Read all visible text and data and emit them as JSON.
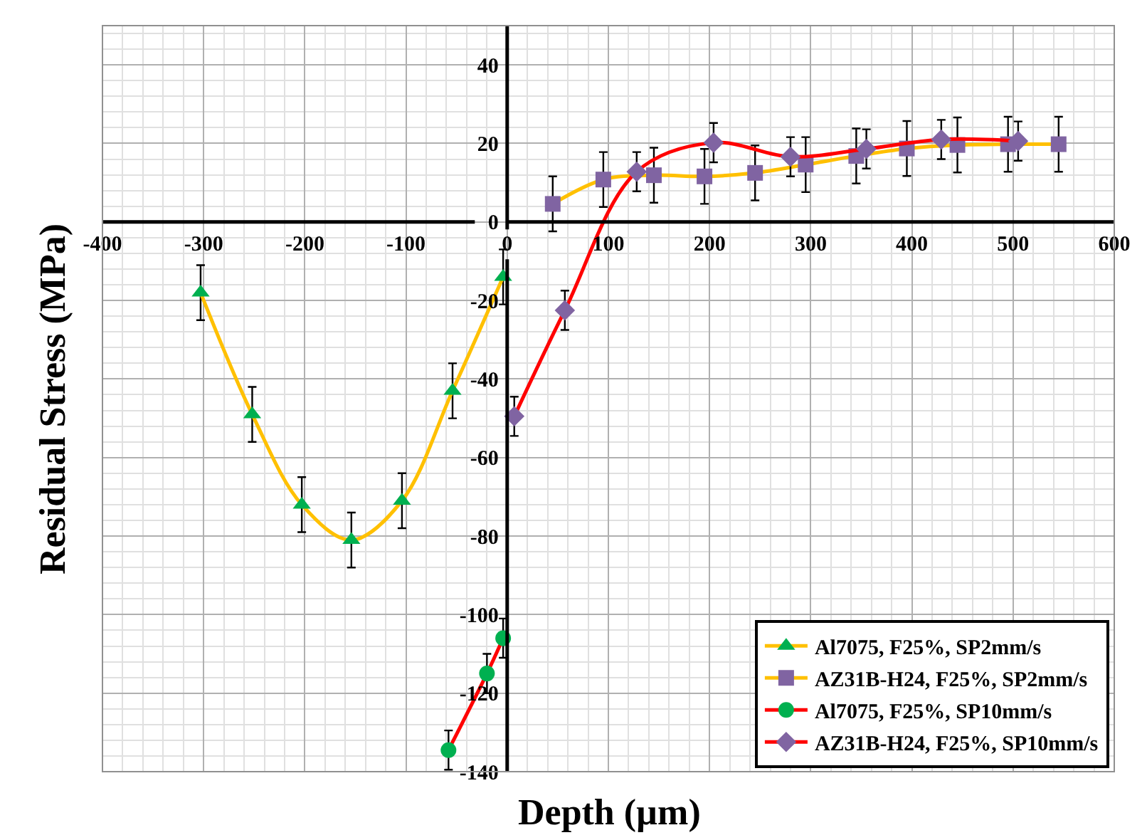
{
  "chart_data": {
    "type": "line",
    "xlabel": "Depth (µm)",
    "ylabel": "Residual Stress (MPa)",
    "xlim": [
      -400,
      600
    ],
    "xticks": [
      -400,
      -300,
      -200,
      -100,
      0,
      100,
      200,
      300,
      400,
      500,
      600
    ],
    "ylim": [
      -140,
      50
    ],
    "yticks": [
      -140,
      -120,
      -100,
      -80,
      -60,
      -40,
      -20,
      0,
      20,
      40
    ],
    "grid": true,
    "legend": "bottom right",
    "line_style": "solid",
    "series": [
      {
        "name": "Al7075, F25%, SP2mm/s",
        "color": "#ffc000",
        "marker": "triangle",
        "colors": [
          "#00b050",
          "#00b050",
          "#00b050",
          "#00b050",
          "#00b050",
          "#00b050",
          "#00b050"
        ],
        "x": [
          -303,
          -252,
          -203,
          -154,
          -104,
          -54,
          -4
        ],
        "values": [
          -18,
          -49,
          -72,
          -81,
          -71,
          -43,
          -14
        ],
        "errors": [
          7,
          7,
          7,
          7,
          7,
          7,
          7
        ]
      },
      {
        "name": "AZ31B-H24, F25%, SP2mm/s",
        "color": "#ffc000",
        "marker": "square",
        "colors": [
          "#8064a2",
          "#8064a2",
          "#8064a2",
          "#8064a2",
          "#8064a2",
          "#8064a2",
          "#8064a2",
          "#8064a2",
          "#8064a2",
          "#8064a2",
          "#8064a2"
        ],
        "x": [
          45,
          95,
          145,
          195,
          245,
          295,
          345,
          395,
          445,
          495,
          545
        ],
        "values": [
          4.6,
          10.8,
          11.9,
          11.6,
          12.5,
          14.6,
          16.8,
          18.7,
          19.6,
          19.8,
          19.8
        ],
        "errors": [
          7,
          7,
          7,
          7,
          7,
          7,
          7,
          7,
          7,
          7,
          7
        ]
      },
      {
        "name": "Al7075, F25%, SP10mm/s",
        "color": "#ff0000",
        "marker": "circle",
        "colors": [
          "#00b050",
          "#00b050",
          "#00b050"
        ],
        "x": [
          -58,
          -20,
          -4
        ],
        "values": [
          -134.5,
          -115,
          -106
        ],
        "errors": [
          5,
          5,
          5
        ]
      },
      {
        "name": "AZ31B-H24, F25%, SP10mm/s",
        "color": "#ff0000",
        "marker": "diamond",
        "colors": [
          "#8064a2",
          "#8064a2",
          "#8064a2",
          "#8064a2",
          "#8064a2",
          "#8064a2",
          "#8064a2",
          "#8064a2"
        ],
        "x": [
          7,
          57,
          128,
          204,
          280,
          355,
          429,
          505
        ],
        "values": [
          -49.5,
          -22.5,
          12.8,
          20.2,
          16.6,
          18.6,
          21,
          20.6
        ],
        "errors": [
          5,
          5,
          5,
          5,
          5,
          5,
          5,
          5
        ]
      }
    ]
  }
}
